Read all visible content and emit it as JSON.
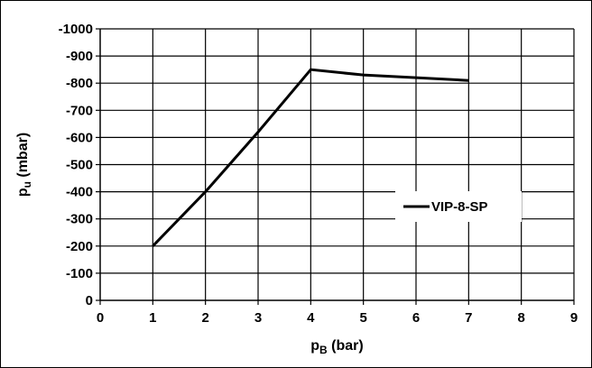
{
  "chart_data": {
    "type": "line",
    "xlabel_main": "p",
    "xlabel_sub": "B",
    "xlabel_unit": " (bar)",
    "ylabel_main": "p",
    "ylabel_sub": "u",
    "ylabel_unit": " (mbar)",
    "xlim": [
      0,
      9
    ],
    "ylim": [
      0,
      -1000
    ],
    "x_ticks": [
      "0",
      "1",
      "2",
      "3",
      "4",
      "5",
      "6",
      "7",
      "8",
      "9"
    ],
    "y_ticks": [
      "0",
      "-100",
      "-200",
      "-300",
      "-400",
      "-500",
      "-600",
      "-700",
      "-800",
      "-900",
      "-1000"
    ],
    "grid": true,
    "legend_position": "right",
    "series": [
      {
        "name": "VIP-8-SP",
        "x": [
          1,
          2,
          3,
          4,
          5,
          6,
          7
        ],
        "y": [
          -200,
          -400,
          -620,
          -850,
          -830,
          -820,
          -810
        ],
        "color": "#000000"
      }
    ]
  }
}
